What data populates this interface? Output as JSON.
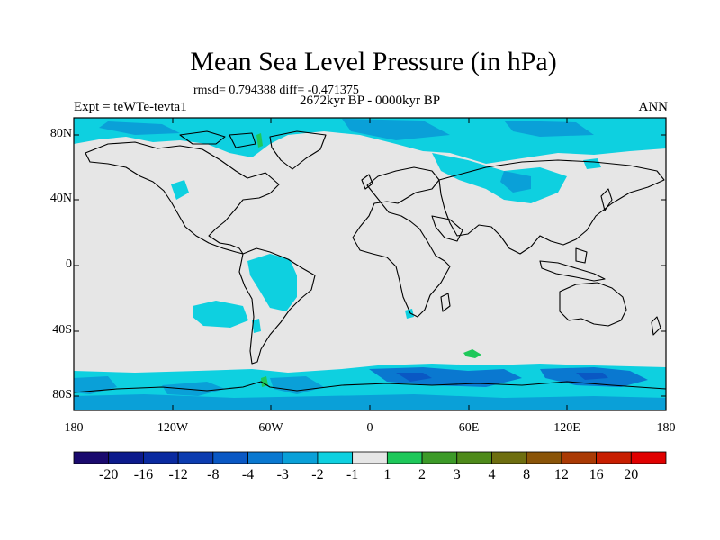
{
  "header": {
    "title": "Mean Sea Level Pressure (in hPa)",
    "stats": "rmsd= 0.794388 diff= -0.471375",
    "period": "2672kyr BP - 0000kyr BP",
    "experiment": "Expt = teWTe-tevta1",
    "season": "ANN"
  },
  "axes": {
    "lat_labels": [
      "80N",
      "40N",
      "0",
      "40S",
      "80S"
    ],
    "lon_labels": [
      "180",
      "120W",
      "60W",
      "0",
      "60E",
      "120E",
      "180"
    ]
  },
  "colorbar": {
    "labels": [
      "-20",
      "-16",
      "-12",
      "-8",
      "-4",
      "-3",
      "-2",
      "-1",
      "1",
      "2",
      "3",
      "4",
      "8",
      "12",
      "16",
      "20"
    ],
    "colors": [
      "#1a0a6e",
      "#0c1a8c",
      "#0a2aa0",
      "#0c3cb0",
      "#0a58c4",
      "#0a78d0",
      "#0aa0d8",
      "#0ed0e0",
      "#e6e6e6",
      "#1ec85a",
      "#3c9a28",
      "#4e8a1a",
      "#6e6e10",
      "#8a5408",
      "#aa3a04",
      "#c81e00",
      "#e00000"
    ]
  },
  "colors": {
    "land_background": "#e6e6e6",
    "light_negative": "#0ed0e0",
    "moderate_negative": "#0aa0d8",
    "strong_negative": "#0a78d0",
    "positive": "#1ec85a"
  }
}
